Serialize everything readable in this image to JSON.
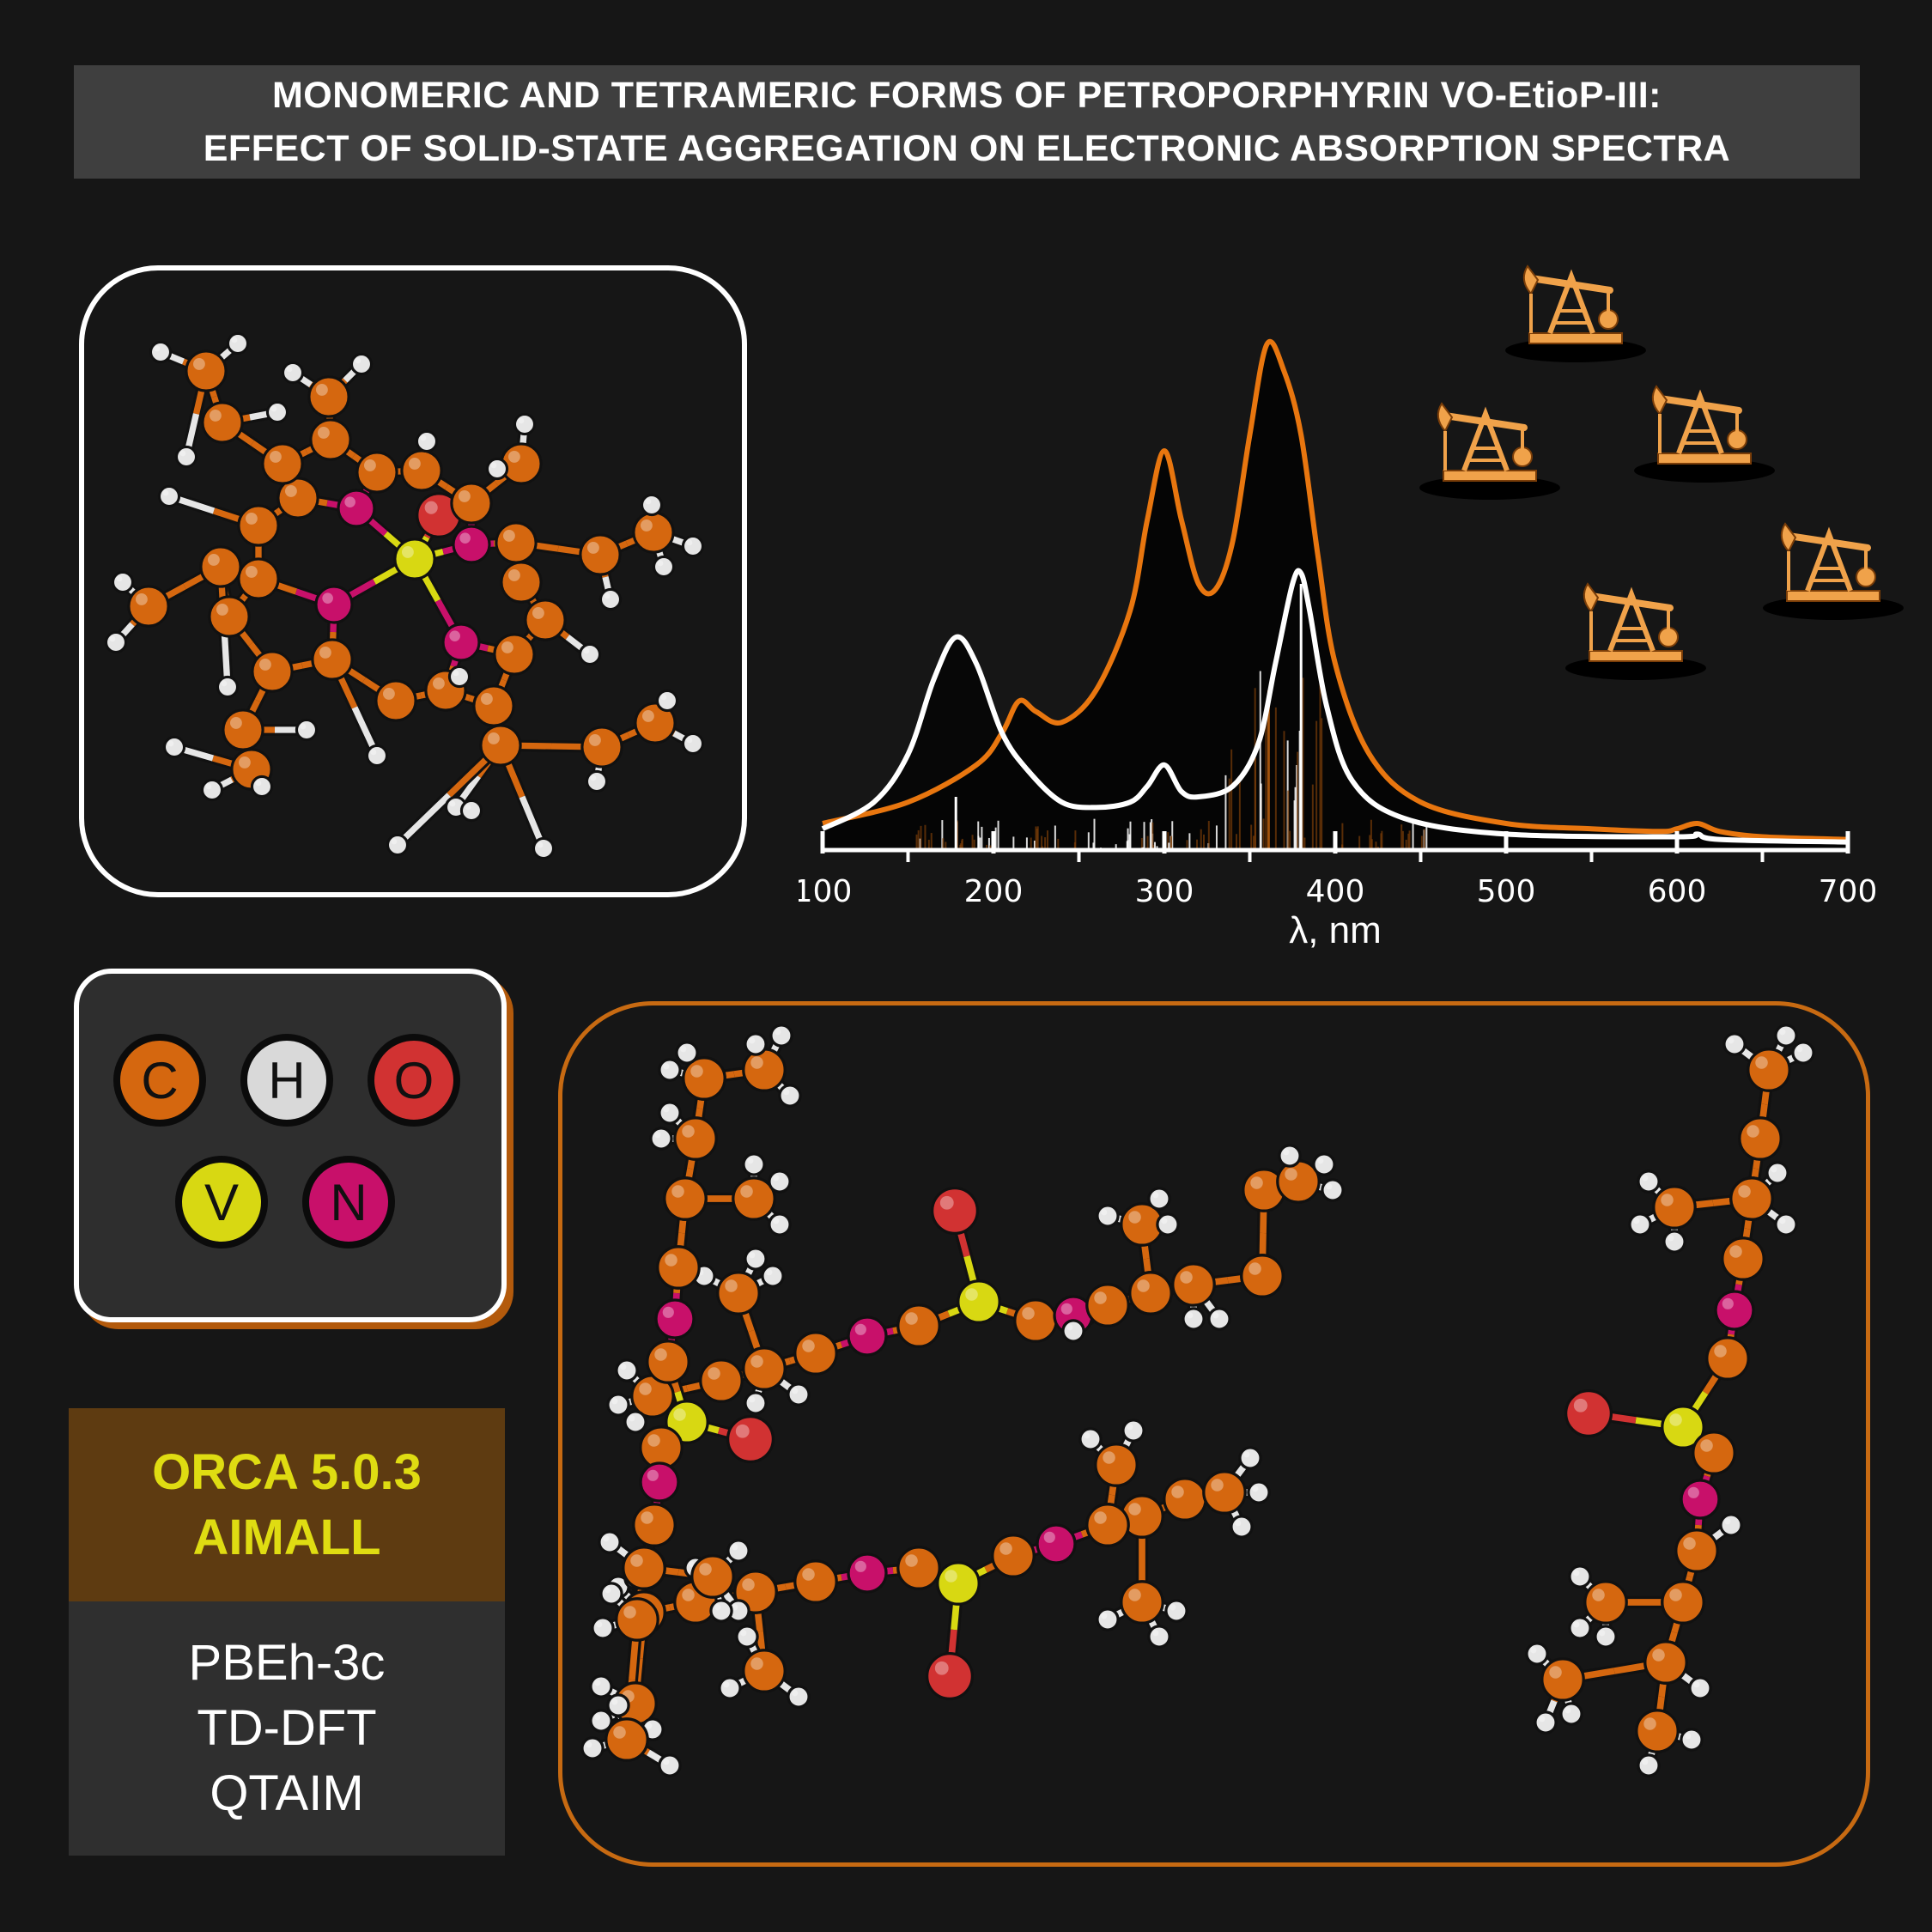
{
  "title": {
    "line1": "MONOMERIC AND TETRAMERIC FORMS OF PETROPORPHYRIN VO-EtioP-III:",
    "line2": "EFFECT OF SOLID-STATE AGGREGATION ON ELECTRONIC ABSORPTION SPECTRA"
  },
  "legend": {
    "atoms": [
      {
        "symbol": "C",
        "color": "#d5670f"
      },
      {
        "symbol": "H",
        "color": "#d9d9d9"
      },
      {
        "symbol": "O",
        "color": "#d13232"
      },
      {
        "symbol": "V",
        "color": "#d8d812"
      },
      {
        "symbol": "N",
        "color": "#c8106a"
      }
    ]
  },
  "software": {
    "line1": "ORCA 5.0.3",
    "line2": "AIMALL"
  },
  "methods": {
    "line1": "PBEh-3c",
    "line2": "TD-DFT",
    "line3": "QTAIM"
  },
  "chart_data": {
    "type": "line",
    "xlabel": "λ, nm",
    "ylabel": "",
    "xlim": [
      100,
      700
    ],
    "xticks": [
      "100",
      "200",
      "300",
      "400",
      "500",
      "600",
      "700"
    ],
    "series": [
      {
        "color": "#e8760f",
        "x": [
          100,
          150,
          190,
          205,
          215,
          225,
          240,
          260,
          280,
          290,
          300,
          310,
          320,
          330,
          340,
          350,
          360,
          370,
          380,
          390,
          400,
          420,
          450,
          500,
          550,
          590,
          600,
          612,
          625,
          650,
          700
        ],
        "y": [
          0.05,
          0.09,
          0.16,
          0.22,
          0.28,
          0.26,
          0.24,
          0.3,
          0.45,
          0.62,
          0.75,
          0.62,
          0.5,
          0.49,
          0.58,
          0.78,
          0.95,
          0.9,
          0.78,
          0.55,
          0.35,
          0.18,
          0.09,
          0.05,
          0.04,
          0.035,
          0.04,
          0.05,
          0.035,
          0.025,
          0.02
        ]
      },
      {
        "color": "#ffffff",
        "x": [
          100,
          130,
          150,
          165,
          178,
          190,
          205,
          220,
          240,
          260,
          280,
          290,
          300,
          310,
          320,
          340,
          355,
          365,
          375,
          380,
          385,
          395,
          410,
          440,
          500,
          600,
          612,
          625,
          700
        ],
        "y": [
          0.04,
          0.09,
          0.18,
          0.32,
          0.4,
          0.35,
          0.22,
          0.15,
          0.09,
          0.08,
          0.09,
          0.12,
          0.16,
          0.11,
          0.1,
          0.12,
          0.2,
          0.35,
          0.5,
          0.52,
          0.45,
          0.27,
          0.13,
          0.06,
          0.03,
          0.025,
          0.03,
          0.02,
          0.015
        ]
      }
    ]
  }
}
